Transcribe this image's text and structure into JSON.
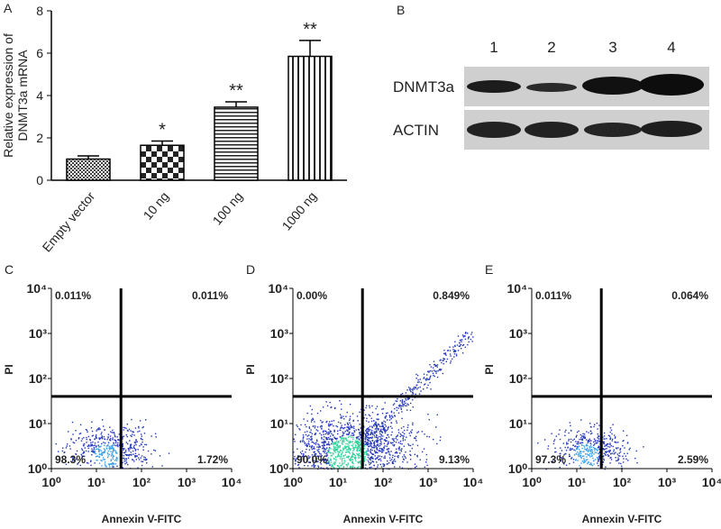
{
  "chart_data": [
    {
      "type": "bar",
      "panel": "A",
      "ylabel": [
        "Relative expression of",
        "DNMT3a mRNA"
      ],
      "categories": [
        "Empty vector",
        "10 ng",
        "100 ng",
        "1000 ng"
      ],
      "values": [
        1.0,
        1.65,
        3.45,
        5.85
      ],
      "errors": [
        0.15,
        0.2,
        0.25,
        0.75
      ],
      "annotations": [
        null,
        "*",
        "**",
        "**"
      ],
      "ylim": [
        0,
        8
      ],
      "yticks": [
        0,
        2,
        4,
        6,
        8
      ]
    },
    {
      "type": "flow",
      "panel": "C",
      "xlabel": "Annexin V-FITC",
      "ylabel": "PI",
      "log_scale": true,
      "xlim": [
        1,
        10000
      ],
      "ylim": [
        1,
        10000
      ],
      "xticks": [
        {
          "value": 1,
          "label": "10⁰"
        },
        {
          "value": 10,
          "label": "10¹"
        },
        {
          "value": 100,
          "label": "10²"
        },
        {
          "value": 1000,
          "label": "10³"
        },
        {
          "value": 10000,
          "label": "10⁴"
        }
      ],
      "yticks": [
        {
          "value": 1,
          "label": "10⁰"
        },
        {
          "value": 10,
          "label": "10¹"
        },
        {
          "value": 100,
          "label": "10²"
        },
        {
          "value": 1000,
          "label": "10³"
        },
        {
          "value": 10000,
          "label": "10⁴"
        }
      ],
      "gate": [
        35,
        40
      ],
      "quadrants": {
        "values": [
          0.011,
          0.011,
          98.3,
          1.72
        ],
        "value_labels": [
          "0.011%",
          "0.011%",
          "98.3%",
          "1.72%"
        ]
      }
    },
    {
      "type": "flow",
      "panel": "D",
      "xlabel": "Annexin V-FITC",
      "ylabel": "PI",
      "log_scale": true,
      "xlim": [
        1,
        10000
      ],
      "ylim": [
        1,
        10000
      ],
      "xticks": [
        {
          "value": 1,
          "label": "10⁰"
        },
        {
          "value": 10,
          "label": "10¹"
        },
        {
          "value": 100,
          "label": "10²"
        },
        {
          "value": 1000,
          "label": "10³"
        },
        {
          "value": 10000,
          "label": "10⁴"
        }
      ],
      "yticks": [
        {
          "value": 1,
          "label": "10⁰"
        },
        {
          "value": 10,
          "label": "10¹"
        },
        {
          "value": 100,
          "label": "10²"
        },
        {
          "value": 1000,
          "label": "10³"
        },
        {
          "value": 10000,
          "label": "10⁴"
        }
      ],
      "gate": [
        35,
        40
      ],
      "quadrants": {
        "values": [
          0.0,
          0.849,
          90.0,
          9.13
        ],
        "value_labels": [
          "0.00%",
          "0.849%",
          "90.0%",
          "9.13%"
        ]
      }
    },
    {
      "type": "flow",
      "panel": "E",
      "xlabel": "Annexin V-FITC",
      "ylabel": "PI",
      "log_scale": true,
      "xlim": [
        1,
        10000
      ],
      "ylim": [
        1,
        10000
      ],
      "xticks": [
        {
          "value": 1,
          "label": "10⁰"
        },
        {
          "value": 10,
          "label": "10¹"
        },
        {
          "value": 100,
          "label": "10²"
        },
        {
          "value": 1000,
          "label": "10³"
        },
        {
          "value": 10000,
          "label": "10⁴"
        }
      ],
      "yticks": [
        {
          "value": 1,
          "label": "10⁰"
        },
        {
          "value": 10,
          "label": "10¹"
        },
        {
          "value": 100,
          "label": "10²"
        },
        {
          "value": 1000,
          "label": "10³"
        },
        {
          "value": 10000,
          "label": "10⁴"
        }
      ],
      "gate": [
        35,
        40
      ],
      "quadrants": {
        "values": [
          0.011,
          0.064,
          97.3,
          2.59
        ],
        "value_labels": [
          "0.011%",
          "0.064%",
          "97.3%",
          "2.59%"
        ]
      }
    }
  ],
  "blot": {
    "panel": "B",
    "lanes": [
      "1",
      "2",
      "3",
      "4"
    ],
    "rows": [
      "DNMT3a",
      "ACTIN"
    ]
  }
}
